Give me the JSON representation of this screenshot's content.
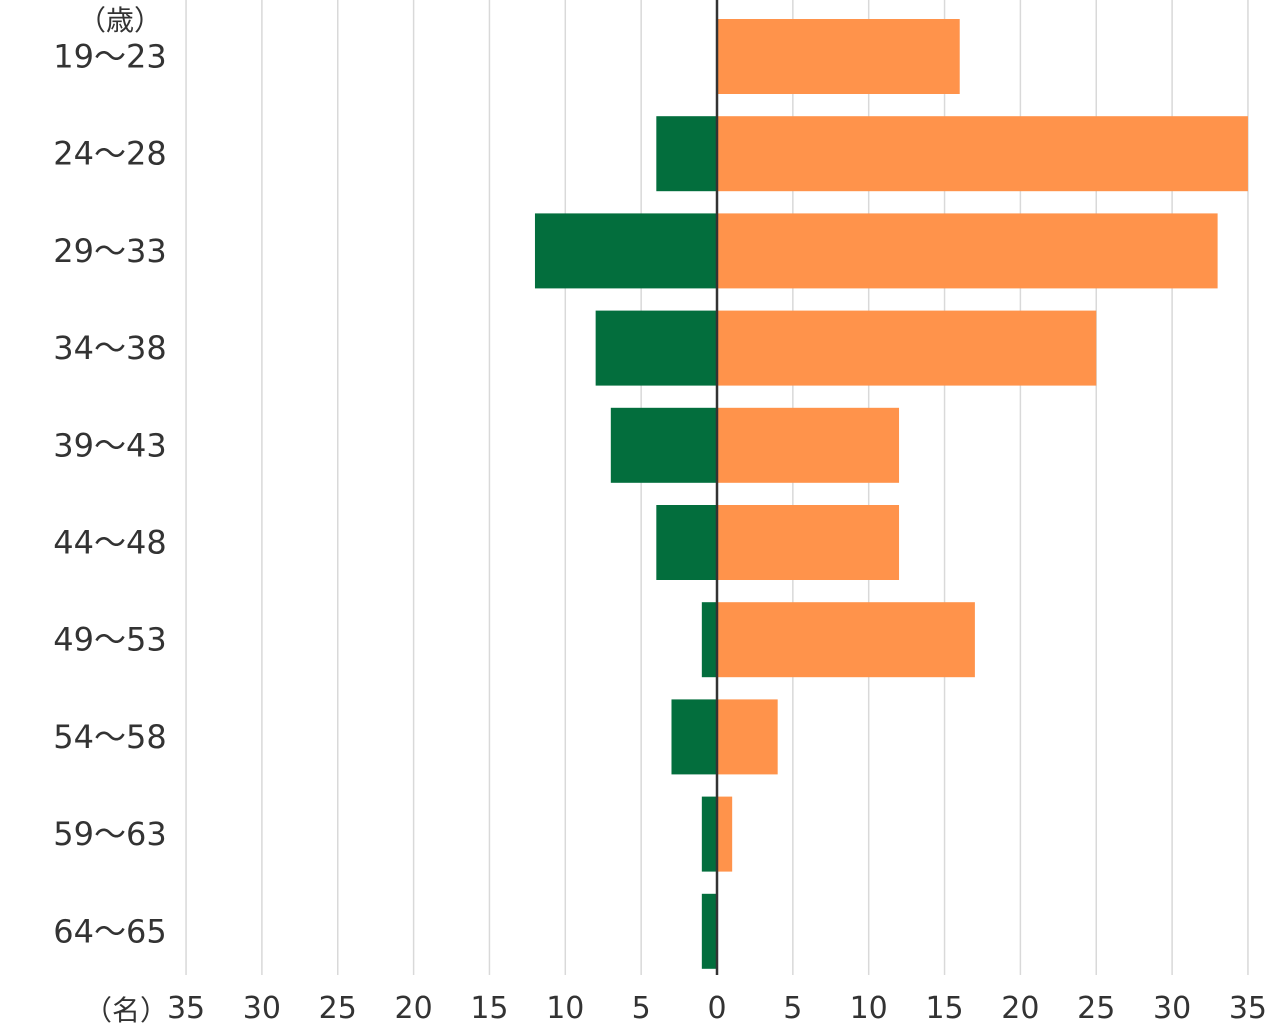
{
  "chart_data": {
    "type": "bar",
    "orientation": "horizontal-diverging",
    "y_unit_label": "（歳）",
    "x_unit_label": "（名）",
    "categories": [
      "19〜23",
      "24〜28",
      "29〜33",
      "34〜38",
      "39〜43",
      "44〜48",
      "49〜53",
      "54〜58",
      "59〜63",
      "64〜65"
    ],
    "x_ticks": [
      {
        "value": -35,
        "label": "35"
      },
      {
        "value": -30,
        "label": "30"
      },
      {
        "value": -25,
        "label": "25"
      },
      {
        "value": -20,
        "label": "20"
      },
      {
        "value": -15,
        "label": "15"
      },
      {
        "value": -10,
        "label": "10"
      },
      {
        "value": -5,
        "label": "5"
      },
      {
        "value": 0,
        "label": "0"
      },
      {
        "value": 5,
        "label": "5"
      },
      {
        "value": 10,
        "label": "10"
      },
      {
        "value": 15,
        "label": "15"
      },
      {
        "value": 20,
        "label": "20"
      },
      {
        "value": 25,
        "label": "25"
      },
      {
        "value": 30,
        "label": "30"
      },
      {
        "value": 35,
        "label": "35"
      }
    ],
    "xlim": [
      -35,
      35
    ],
    "grid": true,
    "series": [
      {
        "side": "left",
        "color": "#036e3d",
        "values": [
          0,
          4,
          12,
          8,
          7,
          4,
          1,
          3,
          1,
          1
        ]
      },
      {
        "side": "right",
        "color": "#ff934b",
        "values": [
          16,
          35,
          33,
          25,
          12,
          12,
          17,
          4,
          1,
          0
        ]
      }
    ]
  }
}
